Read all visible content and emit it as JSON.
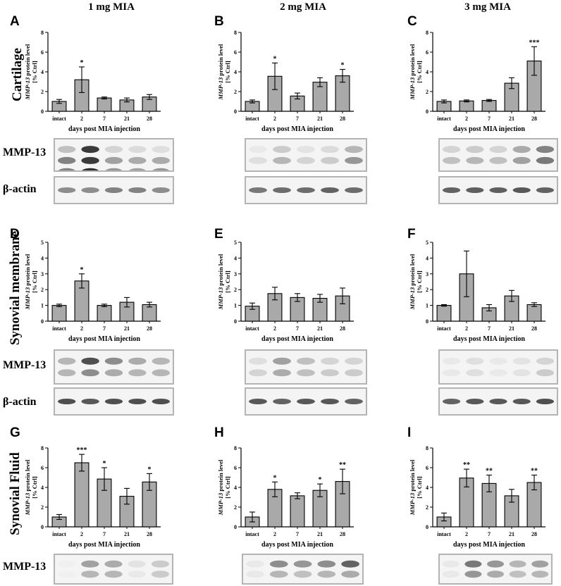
{
  "columns": [
    "1 mg MIA",
    "2 mg MIA",
    "3 mg MIA"
  ],
  "rows": [
    "Cartilage",
    "Synovial membrane",
    "Synovial Fluid"
  ],
  "blot_labels": {
    "mmp13": "MMP-13",
    "actin": "β-actin"
  },
  "chart_data": [
    {
      "id": "A",
      "type": "bar",
      "title": "",
      "categories": [
        "intact",
        "2",
        "7",
        "21",
        "28"
      ],
      "values": [
        1.0,
        3.2,
        1.35,
        1.15,
        1.45
      ],
      "errors": [
        0.2,
        1.3,
        0.1,
        0.2,
        0.25
      ],
      "significance": [
        "",
        "*",
        "",
        "",
        ""
      ],
      "ylim": [
        0,
        8
      ],
      "yticks": [
        0,
        2,
        4,
        6,
        8
      ],
      "ylabel_italic": "MMP-13",
      "ylabel_rest": " protein level",
      "ylabel2": "[% Ctrl]",
      "xlabel": "days post MIA injection"
    },
    {
      "id": "B",
      "type": "bar",
      "title": "",
      "categories": [
        "intact",
        "2",
        "7",
        "21",
        "28"
      ],
      "values": [
        1.0,
        3.55,
        1.55,
        2.95,
        3.6
      ],
      "errors": [
        0.15,
        1.35,
        0.3,
        0.45,
        0.65
      ],
      "significance": [
        "",
        "*",
        "",
        "",
        "*"
      ],
      "ylim": [
        0,
        8
      ],
      "yticks": [
        0,
        2,
        4,
        6,
        8
      ],
      "ylabel_italic": "MMP-13",
      "ylabel_rest": " protein level",
      "ylabel2": "[% Ctrl]",
      "xlabel": "days post MIA injection"
    },
    {
      "id": "C",
      "type": "bar",
      "title": "",
      "categories": [
        "intact",
        "2",
        "7",
        "21",
        "28"
      ],
      "values": [
        1.0,
        1.05,
        1.1,
        2.85,
        5.1
      ],
      "errors": [
        0.15,
        0.1,
        0.1,
        0.55,
        1.45
      ],
      "significance": [
        "",
        "",
        "",
        "",
        "***"
      ],
      "ylim": [
        0,
        8
      ],
      "yticks": [
        0,
        2,
        4,
        6,
        8
      ],
      "ylabel_italic": "MMP-13",
      "ylabel_rest": " protein level",
      "ylabel2": "[% Ctrl]",
      "xlabel": "days post MIA injection"
    },
    {
      "id": "D",
      "type": "bar",
      "title": "",
      "categories": [
        "intact",
        "2",
        "7",
        "21",
        "28"
      ],
      "values": [
        1.0,
        2.55,
        1.0,
        1.2,
        1.05
      ],
      "errors": [
        0.08,
        0.45,
        0.08,
        0.3,
        0.15
      ],
      "significance": [
        "",
        "*",
        "",
        "",
        ""
      ],
      "ylim": [
        0,
        5
      ],
      "yticks": [
        0,
        1,
        2,
        3,
        4,
        5
      ],
      "ylabel_italic": "MMP-13",
      "ylabel_rest": " protein level",
      "ylabel2": "[% Ctrl]",
      "xlabel": "days post MIA injection"
    },
    {
      "id": "E",
      "type": "bar",
      "title": "",
      "categories": [
        "intact",
        "2",
        "7",
        "21",
        "28"
      ],
      "values": [
        0.95,
        1.75,
        1.5,
        1.45,
        1.6
      ],
      "errors": [
        0.2,
        0.4,
        0.25,
        0.25,
        0.5
      ],
      "significance": [
        "",
        "",
        "",
        "",
        ""
      ],
      "ylim": [
        0,
        5
      ],
      "yticks": [
        0,
        1,
        2,
        3,
        4,
        5
      ],
      "ylabel_italic": "MMP-13",
      "ylabel_rest": " protein level",
      "ylabel2": "[% Ctrl]",
      "xlabel": "days post MIA injection"
    },
    {
      "id": "F",
      "type": "bar",
      "title": "",
      "categories": [
        "intact",
        "2",
        "7",
        "21",
        "28"
      ],
      "values": [
        1.0,
        3.0,
        0.85,
        1.6,
        1.05
      ],
      "errors": [
        0.05,
        1.45,
        0.2,
        0.35,
        0.12
      ],
      "significance": [
        "",
        "",
        "",
        "",
        ""
      ],
      "ylim": [
        0,
        5
      ],
      "yticks": [
        0,
        1,
        2,
        3,
        4,
        5
      ],
      "ylabel_italic": "MMP-13",
      "ylabel_rest": " protein level",
      "ylabel2": "[% Ctrl]",
      "xlabel": "days post MIA injection"
    },
    {
      "id": "G",
      "type": "bar",
      "title": "",
      "categories": [
        "intact",
        "2",
        "7",
        "21",
        "28"
      ],
      "values": [
        1.0,
        6.5,
        4.85,
        3.1,
        4.55
      ],
      "errors": [
        0.25,
        0.85,
        1.15,
        0.8,
        0.85
      ],
      "significance": [
        "",
        "***",
        "*",
        "",
        "*"
      ],
      "ylim": [
        0,
        8
      ],
      "yticks": [
        0,
        2,
        4,
        6,
        8
      ],
      "ylabel_italic": "MMP-13",
      "ylabel_rest": " protein level",
      "ylabel2": "[% Ctrl]",
      "xlabel": "days post MIA injection"
    },
    {
      "id": "H",
      "type": "bar",
      "title": "",
      "categories": [
        "intact",
        "2",
        "7",
        "21",
        "28"
      ],
      "values": [
        1.0,
        3.8,
        3.15,
        3.7,
        4.6
      ],
      "errors": [
        0.5,
        0.75,
        0.3,
        0.65,
        1.25
      ],
      "significance": [
        "",
        "*",
        "",
        "*",
        "**"
      ],
      "ylim": [
        0,
        8
      ],
      "yticks": [
        0,
        2,
        4,
        6,
        8
      ],
      "ylabel_italic": "MMP-13",
      "ylabel_rest": " protein level",
      "ylabel2": "[% Ctrl]",
      "xlabel": "days post MIA injection"
    },
    {
      "id": "I",
      "type": "bar",
      "title": "",
      "categories": [
        "intact",
        "2",
        "7",
        "21",
        "28"
      ],
      "values": [
        1.0,
        4.95,
        4.4,
        3.15,
        4.5
      ],
      "errors": [
        0.4,
        0.9,
        0.85,
        0.65,
        0.75
      ],
      "significance": [
        "",
        "**",
        "**",
        "",
        "**"
      ],
      "ylim": [
        0,
        8
      ],
      "yticks": [
        0,
        2,
        4,
        6,
        8
      ],
      "ylabel_italic": "MMP-13",
      "ylabel_rest": " protein level",
      "ylabel2": "[% Ctrl]",
      "xlabel": "days post MIA injection"
    }
  ]
}
